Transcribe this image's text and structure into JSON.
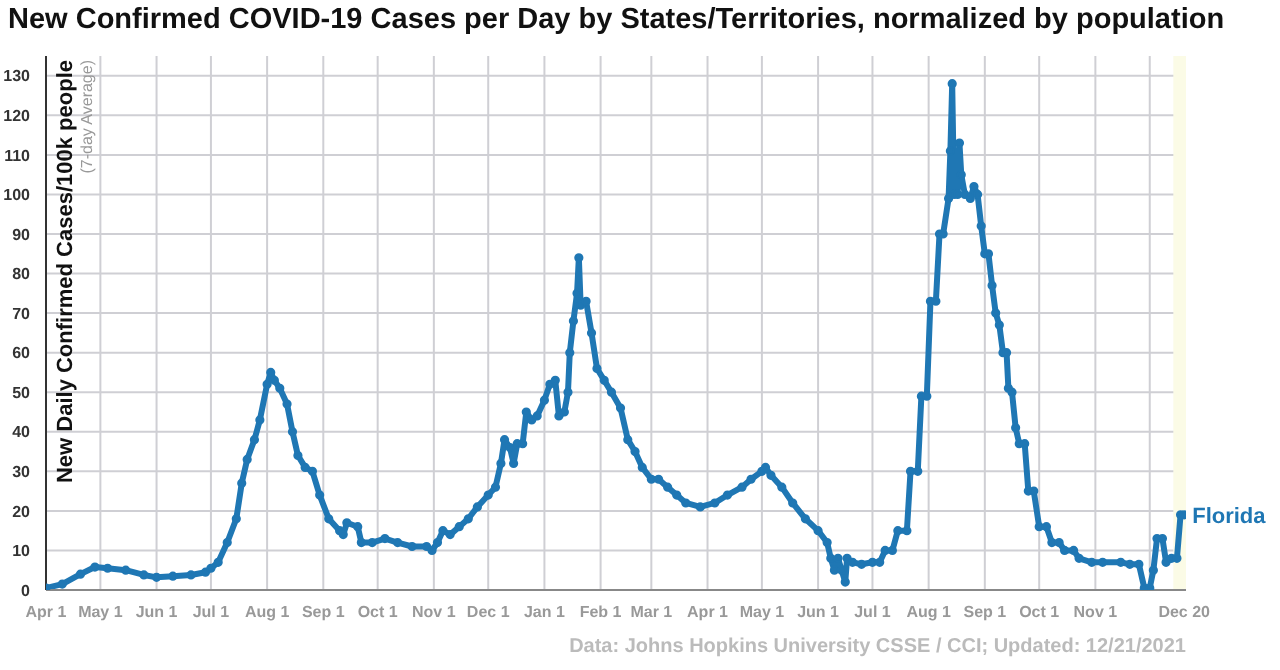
{
  "chart_data": {
    "type": "line",
    "title": "New Confirmed COVID-19 Cases per Day by States/Territories, normalized by population",
    "ylabel": "New Daily Confirmed Cases/100k people",
    "annotations": [
      "(7-day Average)",
      "Data: Johns Hopkins University CSSE / CCI; Updated: 12/21/2021"
    ],
    "xlim": [
      "2020-04-01",
      "2021-12-21"
    ],
    "xticks": [
      {
        "value": "2020-04-01",
        "label": "Apr 1"
      },
      {
        "value": "2020-05-01",
        "label": "May 1"
      },
      {
        "value": "2020-06-01",
        "label": "Jun 1"
      },
      {
        "value": "2020-07-01",
        "label": "Jul 1"
      },
      {
        "value": "2020-08-01",
        "label": "Aug 1"
      },
      {
        "value": "2020-09-01",
        "label": "Sep 1"
      },
      {
        "value": "2020-10-01",
        "label": "Oct 1"
      },
      {
        "value": "2020-11-01",
        "label": "Nov 1"
      },
      {
        "value": "2020-12-01",
        "label": "Dec 1"
      },
      {
        "value": "2021-01-01",
        "label": "Jan 1"
      },
      {
        "value": "2021-02-01",
        "label": "Feb 1"
      },
      {
        "value": "2021-03-01",
        "label": "Mar 1"
      },
      {
        "value": "2021-04-01",
        "label": "Apr 1"
      },
      {
        "value": "2021-05-01",
        "label": "May 1"
      },
      {
        "value": "2021-06-01",
        "label": "Jun 1"
      },
      {
        "value": "2021-07-01",
        "label": "Jul 1"
      },
      {
        "value": "2021-08-01",
        "label": "Aug 1"
      },
      {
        "value": "2021-09-01",
        "label": "Sep 1"
      },
      {
        "value": "2021-10-01",
        "label": "Oct 1"
      },
      {
        "value": "2021-11-01",
        "label": "Nov 1"
      },
      {
        "value": "2021-12-01",
        "label": null
      },
      {
        "value": "2021-12-20",
        "label": "Dec 20"
      }
    ],
    "ylim": [
      0,
      135
    ],
    "yticks": [
      0,
      10,
      20,
      30,
      40,
      50,
      60,
      70,
      80,
      90,
      100,
      110,
      120,
      130
    ],
    "grid": true,
    "marker": "circle",
    "line_style": "solid",
    "bands": [
      {
        "axis": "x",
        "from": "2021-12-14",
        "to": "2021-12-21",
        "color": "#fbfbe6"
      }
    ],
    "x": [
      "2020-04-01",
      "2020-04-10",
      "2020-04-20",
      "2020-04-28",
      "2020-05-05",
      "2020-05-15",
      "2020-05-25",
      "2020-06-01",
      "2020-06-10",
      "2020-06-20",
      "2020-06-28",
      "2020-07-01",
      "2020-07-05",
      "2020-07-10",
      "2020-07-15",
      "2020-07-18",
      "2020-07-21",
      "2020-07-25",
      "2020-07-28",
      "2020-08-01",
      "2020-08-03",
      "2020-08-05",
      "2020-08-08",
      "2020-08-12",
      "2020-08-15",
      "2020-08-18",
      "2020-08-22",
      "2020-08-26",
      "2020-08-30",
      "2020-09-04",
      "2020-09-10",
      "2020-09-12",
      "2020-09-14",
      "2020-09-20",
      "2020-09-22",
      "2020-09-28",
      "2020-10-05",
      "2020-10-12",
      "2020-10-20",
      "2020-10-28",
      "2020-10-31",
      "2020-11-03",
      "2020-11-06",
      "2020-11-10",
      "2020-11-15",
      "2020-11-20",
      "2020-11-25",
      "2020-12-01",
      "2020-12-05",
      "2020-12-08",
      "2020-12-10",
      "2020-12-13",
      "2020-12-15",
      "2020-12-17",
      "2020-12-20",
      "2020-12-22",
      "2020-12-25",
      "2020-12-28",
      "2021-01-01",
      "2021-01-04",
      "2021-01-07",
      "2021-01-09",
      "2021-01-12",
      "2021-01-14",
      "2021-01-15",
      "2021-01-17",
      "2021-01-19",
      "2021-01-20",
      "2021-01-21",
      "2021-01-24",
      "2021-01-27",
      "2021-01-30",
      "2021-02-03",
      "2021-02-07",
      "2021-02-12",
      "2021-02-16",
      "2021-02-20",
      "2021-02-24",
      "2021-03-01",
      "2021-03-05",
      "2021-03-10",
      "2021-03-15",
      "2021-03-20",
      "2021-03-28",
      "2021-04-05",
      "2021-04-12",
      "2021-04-20",
      "2021-04-25",
      "2021-05-01",
      "2021-05-03",
      "2021-05-06",
      "2021-05-12",
      "2021-05-18",
      "2021-05-25",
      "2021-06-01",
      "2021-06-06",
      "2021-06-08",
      "2021-06-10",
      "2021-06-12",
      "2021-06-14",
      "2021-06-16",
      "2021-06-17",
      "2021-06-20",
      "2021-06-25",
      "2021-07-01",
      "2021-07-05",
      "2021-07-08",
      "2021-07-12",
      "2021-07-15",
      "2021-07-20",
      "2021-07-22",
      "2021-07-26",
      "2021-07-28",
      "2021-07-31",
      "2021-08-02",
      "2021-08-05",
      "2021-08-07",
      "2021-08-09",
      "2021-08-12",
      "2021-08-13",
      "2021-08-14",
      "2021-08-15",
      "2021-08-17",
      "2021-08-18",
      "2021-08-19",
      "2021-08-21",
      "2021-08-24",
      "2021-08-26",
      "2021-08-28",
      "2021-08-30",
      "2021-09-01",
      "2021-09-03",
      "2021-09-05",
      "2021-09-07",
      "2021-09-09",
      "2021-09-11",
      "2021-09-13",
      "2021-09-14",
      "2021-09-16",
      "2021-09-18",
      "2021-09-20",
      "2021-09-23",
      "2021-09-25",
      "2021-09-28",
      "2021-10-01",
      "2021-10-05",
      "2021-10-08",
      "2021-10-12",
      "2021-10-15",
      "2021-10-20",
      "2021-10-23",
      "2021-10-30",
      "2021-11-05",
      "2021-11-15",
      "2021-11-20",
      "2021-11-25",
      "2021-11-28",
      "2021-12-01",
      "2021-12-03",
      "2021-12-05",
      "2021-12-08",
      "2021-12-10",
      "2021-12-13",
      "2021-12-16",
      "2021-12-18",
      "2021-12-20"
    ],
    "series": [
      {
        "name": "Florida",
        "color": "#1f77b4",
        "values": [
          0.5,
          1.5,
          4,
          5.8,
          5.5,
          5,
          3.8,
          3.2,
          3.5,
          3.8,
          4.5,
          5.5,
          7,
          12,
          18,
          27,
          33,
          38,
          43,
          52,
          55,
          53,
          51,
          47,
          40,
          34,
          31,
          30,
          24,
          18,
          15,
          14,
          17,
          16,
          12,
          12,
          13,
          12,
          11,
          11,
          10,
          12,
          15,
          14,
          16,
          18,
          21,
          24,
          26,
          32,
          38,
          36,
          32,
          37,
          37,
          45,
          43,
          44,
          48,
          52,
          53,
          44,
          45,
          50,
          60,
          68,
          75,
          84,
          72,
          73,
          65,
          56,
          53,
          50,
          46,
          38,
          35,
          31,
          28,
          28,
          26,
          24,
          22,
          21,
          22,
          24,
          26,
          28,
          30,
          31,
          29,
          26,
          22,
          18,
          15,
          12,
          8,
          5,
          8,
          5,
          2,
          8,
          7,
          6.5,
          7,
          7,
          10,
          10,
          15,
          15,
          30,
          30,
          49,
          49,
          73,
          73,
          90,
          90,
          99,
          111,
          128,
          100,
          100,
          113,
          105,
          100,
          99,
          102,
          100,
          92,
          85,
          85,
          77,
          70,
          67,
          60,
          60,
          51,
          50,
          41,
          37,
          37,
          25,
          25,
          16,
          16,
          12,
          12,
          10,
          10,
          8,
          7,
          7,
          7,
          6.5,
          6.5,
          0.5,
          0.5,
          5,
          13,
          13,
          7,
          8,
          8,
          19,
          19
        ]
      }
    ]
  }
}
